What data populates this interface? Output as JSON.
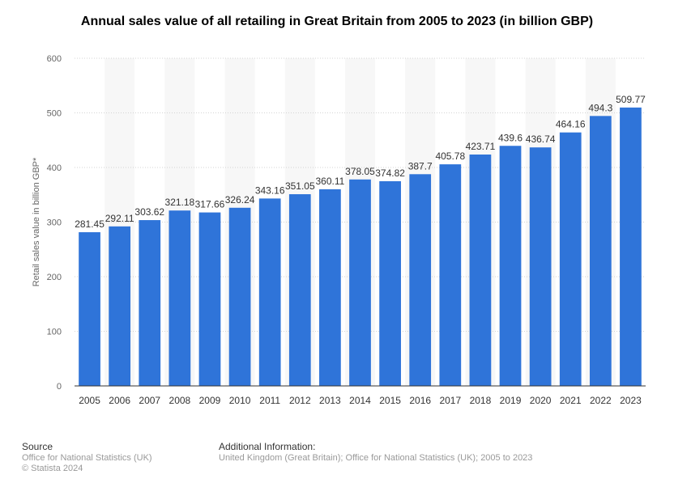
{
  "chart_data": {
    "type": "bar",
    "title": "Annual sales value of all retailing in Great Britain from 2005 to 2023 (in billion GBP)",
    "xlabel": "",
    "ylabel": "Retail sales value in billion GBP*",
    "categories": [
      "2005",
      "2006",
      "2007",
      "2008",
      "2009",
      "2010",
      "2011",
      "2012",
      "2013",
      "2014",
      "2015",
      "2016",
      "2017",
      "2018",
      "2019",
      "2020",
      "2021",
      "2022",
      "2023"
    ],
    "values": [
      281.45,
      292.11,
      303.62,
      321.18,
      317.66,
      326.24,
      343.16,
      351.05,
      360.11,
      378.05,
      374.82,
      387.7,
      405.78,
      423.71,
      439.6,
      436.74,
      464.16,
      494.3,
      509.77
    ],
    "value_labels": [
      "281.45",
      "292.11",
      "303.62",
      "321.18",
      "317.66",
      "326.24",
      "343.16",
      "351.05",
      "360.11",
      "378.05",
      "374.82",
      "387.7",
      "405.78",
      "423.71",
      "439.6",
      "436.74",
      "464.16",
      "494.3",
      "509.77"
    ],
    "ylim": [
      0,
      600
    ],
    "yticks": [
      0,
      100,
      200,
      300,
      400,
      500,
      600
    ],
    "grid": true,
    "legend": "none",
    "bar_color": "#2f74d9"
  },
  "footer": {
    "source_heading": "Source",
    "source_line1": "Office for National Statistics (UK)",
    "source_line2": "© Statista 2024",
    "info_heading": "Additional Information:",
    "info_text": "United Kingdom (Great Britain); Office for National Statistics (UK); 2005 to 2023"
  }
}
